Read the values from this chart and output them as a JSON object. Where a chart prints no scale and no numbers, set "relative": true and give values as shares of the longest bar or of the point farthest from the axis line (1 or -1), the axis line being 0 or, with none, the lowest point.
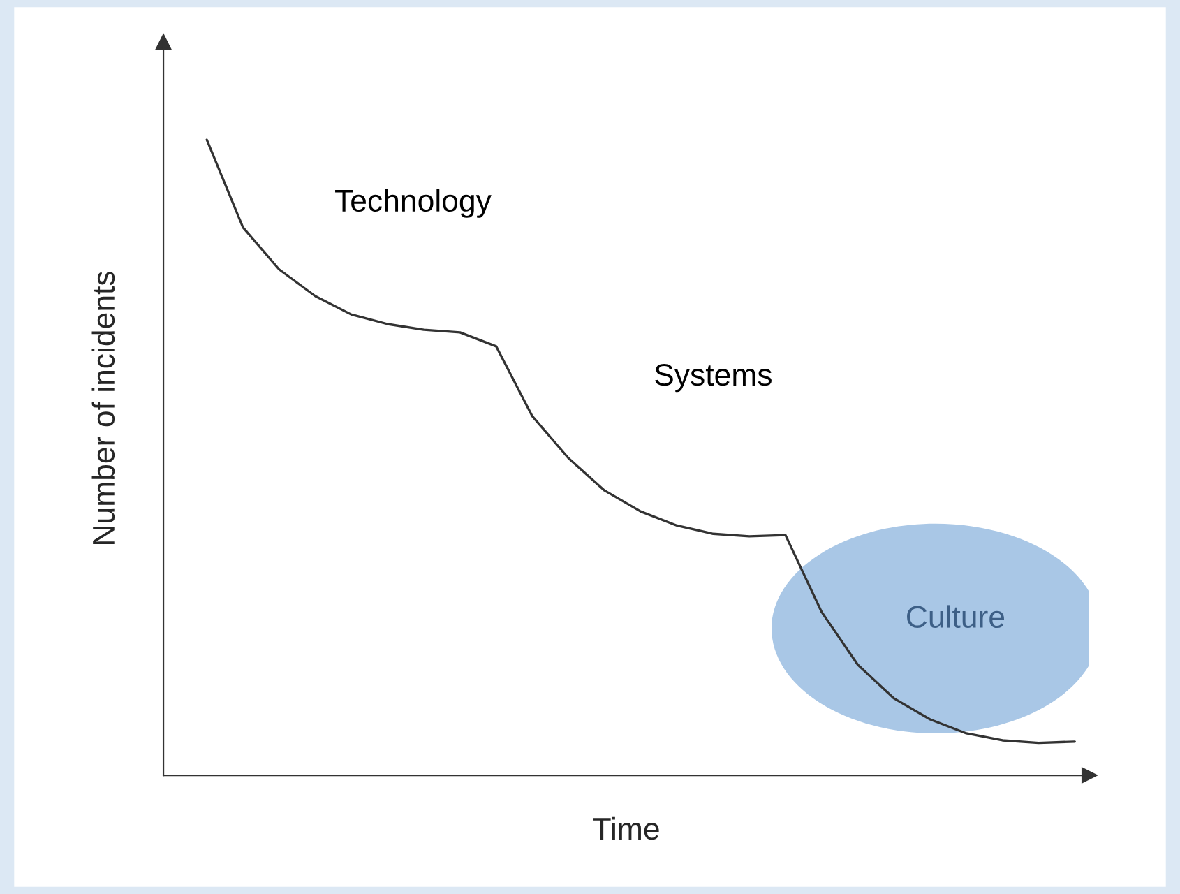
{
  "chart_data": {
    "type": "line",
    "relative": true,
    "xlabel": "Time",
    "ylabel": "Number of incidents",
    "categories": [
      null,
      null,
      null,
      null,
      null,
      null,
      null,
      null,
      null,
      null,
      null,
      null,
      null,
      null,
      null,
      null,
      null,
      null,
      null,
      null,
      null,
      null,
      null,
      null,
      null
    ],
    "series": [
      {
        "color": "#333333",
        "values": [
          1.0,
          0.862,
          0.796,
          0.754,
          0.725,
          0.71,
          0.701,
          0.697,
          0.675,
          0.565,
          0.499,
          0.448,
          0.415,
          0.393,
          0.38,
          0.376,
          0.378,
          0.257,
          0.174,
          0.121,
          0.088,
          0.066,
          0.055,
          0.051,
          0.053
        ]
      }
    ],
    "annotations": [
      "Technology",
      "Systems",
      "Culture"
    ],
    "grid": false,
    "legend": false,
    "marker": "none",
    "line_style": "solid"
  }
}
